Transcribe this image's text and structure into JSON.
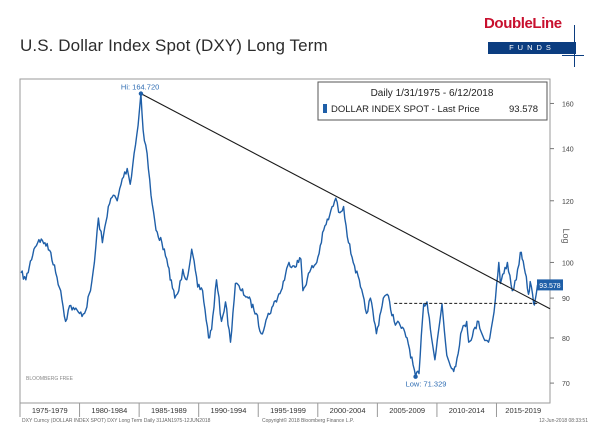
{
  "title": "U.S. Dollar Index Spot (DXY) Long Term",
  "logo": {
    "name": "DoubleLine",
    "sub": "FUNDS"
  },
  "chart_data": {
    "type": "line",
    "legend_title": "Daily 1/31/1975 - 6/12/2018",
    "series_name": "DOLLAR INDEX SPOT - Last Price",
    "last_price": "93.578",
    "last_price_badge": "93.578",
    "y_scale": "log",
    "ylabel": "Log",
    "ylim": [
      66,
      172
    ],
    "xlim": [
      "1975-01-01",
      "2019-06-30"
    ],
    "y_ticks": [
      70,
      80,
      90,
      100,
      120,
      140,
      160
    ],
    "x_tick_labels": [
      "1975-1979",
      "1980-1984",
      "1985-1989",
      "1990-1994",
      "1995-1999",
      "2000-2004",
      "2005-2009",
      "2010-2014",
      "2015-2019"
    ],
    "annotations": {
      "high": "Hi: 164.720",
      "low": "Low: 71.329"
    },
    "trendline": {
      "x": [
        "1985-02-25",
        "2019-06-30"
      ],
      "y": [
        164.72,
        87.2
      ]
    },
    "support_line": {
      "x": [
        "2006-06-01",
        "2018-06-12"
      ],
      "y": [
        88.6,
        88.6
      ]
    },
    "grid": false,
    "footer_left": "DXY Curncy (DOLLAR INDEX SPOT) DXY Long Term   Daily 31JAN1975-12JUN2018",
    "footer_center": "Copyright© 2018 Bloomberg Finance L.P.",
    "footer_right": "12-Jun-2018 08:33:51",
    "watermark": "BLOOMBERG FREE",
    "points": [
      [
        "1975-01-31",
        97
      ],
      [
        "1975-06-30",
        95
      ],
      [
        "1976-03-01",
        104
      ],
      [
        "1976-08-01",
        107
      ],
      [
        "1977-02-01",
        106
      ],
      [
        "1977-08-01",
        103
      ],
      [
        "1978-01-01",
        97
      ],
      [
        "1978-06-01",
        92
      ],
      [
        "1978-10-31",
        84
      ],
      [
        "1979-03-01",
        88
      ],
      [
        "1979-08-01",
        87
      ],
      [
        "1980-01-01",
        86
      ],
      [
        "1980-06-01",
        86
      ],
      [
        "1980-12-01",
        92
      ],
      [
        "1981-04-01",
        100
      ],
      [
        "1981-08-01",
        114
      ],
      [
        "1981-12-01",
        106
      ],
      [
        "1982-06-01",
        118
      ],
      [
        "1982-11-01",
        122
      ],
      [
        "1983-03-01",
        120
      ],
      [
        "1983-08-01",
        128
      ],
      [
        "1984-01-01",
        132
      ],
      [
        "1984-04-01",
        126
      ],
      [
        "1984-08-01",
        138
      ],
      [
        "1984-12-01",
        150
      ],
      [
        "1985-02-25",
        164.72
      ],
      [
        "1985-05-01",
        148
      ],
      [
        "1985-09-01",
        138
      ],
      [
        "1986-01-01",
        122
      ],
      [
        "1986-06-01",
        110
      ],
      [
        "1986-12-01",
        106
      ],
      [
        "1987-06-01",
        99
      ],
      [
        "1987-12-31",
        90
      ],
      [
        "1988-05-01",
        92
      ],
      [
        "1988-09-01",
        98
      ],
      [
        "1989-01-01",
        95
      ],
      [
        "1989-06-01",
        104
      ],
      [
        "1989-12-01",
        93
      ],
      [
        "1990-05-01",
        92
      ],
      [
        "1990-11-01",
        80
      ],
      [
        "1991-02-01",
        82
      ],
      [
        "1991-07-01",
        95
      ],
      [
        "1991-12-01",
        84
      ],
      [
        "1992-04-01",
        89
      ],
      [
        "1992-09-01",
        79
      ],
      [
        "1993-02-01",
        94
      ],
      [
        "1993-08-01",
        92
      ],
      [
        "1994-03-01",
        90
      ],
      [
        "1994-11-01",
        86
      ],
      [
        "1995-04-01",
        81
      ],
      [
        "1995-10-01",
        85
      ],
      [
        "1996-04-01",
        88
      ],
      [
        "1996-12-01",
        92
      ],
      [
        "1997-08-01",
        100
      ],
      [
        "1998-01-01",
        99
      ],
      [
        "1998-08-01",
        101
      ],
      [
        "1998-10-01",
        92
      ],
      [
        "1999-06-01",
        98
      ],
      [
        "1999-12-01",
        100
      ],
      [
        "2000-07-01",
        110
      ],
      [
        "2001-01-01",
        115
      ],
      [
        "2001-07-05",
        120.9
      ],
      [
        "2001-10-01",
        116
      ],
      [
        "2002-03-01",
        118
      ],
      [
        "2002-08-01",
        106
      ],
      [
        "2003-02-01",
        99
      ],
      [
        "2003-08-01",
        93
      ],
      [
        "2004-02-01",
        86
      ],
      [
        "2004-06-01",
        90
      ],
      [
        "2004-12-01",
        81
      ],
      [
        "2005-07-01",
        90
      ],
      [
        "2005-11-01",
        91
      ],
      [
        "2006-06-01",
        84
      ],
      [
        "2006-12-01",
        83
      ],
      [
        "2007-07-01",
        80
      ],
      [
        "2008-03-17",
        71.329
      ],
      [
        "2008-07-01",
        72
      ],
      [
        "2008-11-20",
        88.5
      ],
      [
        "2009-03-04",
        89
      ],
      [
        "2009-11-01",
        75
      ],
      [
        "2010-06-07",
        88.5
      ],
      [
        "2010-11-01",
        76
      ],
      [
        "2011-05-01",
        73
      ],
      [
        "2011-08-01",
        73.5
      ],
      [
        "2012-01-01",
        81
      ],
      [
        "2012-07-01",
        84
      ],
      [
        "2012-09-01",
        79
      ],
      [
        "2013-07-01",
        84
      ],
      [
        "2013-12-01",
        80
      ],
      [
        "2014-05-01",
        79
      ],
      [
        "2014-09-01",
        84
      ],
      [
        "2014-12-01",
        90
      ],
      [
        "2015-03-13",
        100
      ],
      [
        "2015-05-01",
        94
      ],
      [
        "2015-12-01",
        100
      ],
      [
        "2016-05-01",
        92
      ],
      [
        "2016-09-01",
        95
      ],
      [
        "2016-12-30",
        103
      ],
      [
        "2017-03-01",
        101
      ],
      [
        "2017-06-01",
        97
      ],
      [
        "2017-09-08",
        91
      ],
      [
        "2017-11-01",
        94.5
      ],
      [
        "2018-02-16",
        88.5
      ],
      [
        "2018-04-01",
        89.5
      ],
      [
        "2018-06-12",
        93.578
      ]
    ]
  }
}
